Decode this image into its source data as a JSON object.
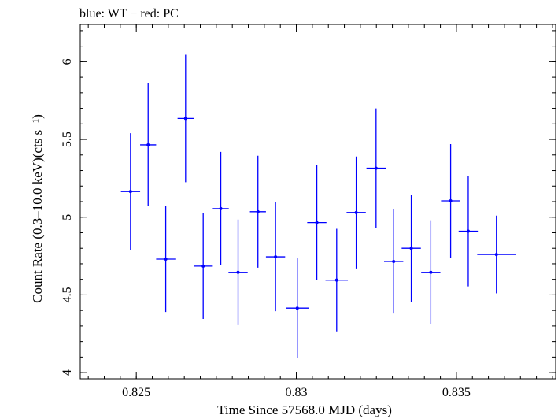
{
  "chart_data": {
    "type": "scatter",
    "title": "blue: WT − red: PC",
    "xlabel": "Time Since 57568.0 MJD (days)",
    "ylabel": "Count Rate (0.3–10.0 keV)(cts s⁻¹)",
    "xlim": [
      0.82325,
      0.8381
    ],
    "ylim": [
      3.96,
      6.24
    ],
    "x_ticks": [
      0.825,
      0.83,
      0.835
    ],
    "x_tick_labels": [
      "0.825",
      "0.83",
      "0.835"
    ],
    "y_ticks": [
      4,
      4.5,
      5,
      5.5,
      6
    ],
    "y_tick_labels": [
      "4",
      "4.5",
      "5",
      "5.5",
      "6"
    ],
    "grid": false,
    "series": [
      {
        "color": "#0000ff",
        "points": [
          {
            "x": 0.82482,
            "xerr": 0.0003,
            "y": 5.165,
            "yerr": 0.375
          },
          {
            "x": 0.82537,
            "xerr": 0.00025,
            "y": 5.465,
            "yerr": 0.395
          },
          {
            "x": 0.82592,
            "xerr": 0.0003,
            "y": 4.73,
            "yerr": 0.34
          },
          {
            "x": 0.82654,
            "xerr": 0.00025,
            "y": 5.635,
            "yerr": 0.41
          },
          {
            "x": 0.82709,
            "xerr": 0.0003,
            "y": 4.685,
            "yerr": 0.34
          },
          {
            "x": 0.82764,
            "xerr": 0.00025,
            "y": 5.055,
            "yerr": 0.365
          },
          {
            "x": 0.82818,
            "xerr": 0.0003,
            "y": 4.645,
            "yerr": 0.34
          },
          {
            "x": 0.8288,
            "xerr": 0.00025,
            "y": 5.035,
            "yerr": 0.36
          },
          {
            "x": 0.82935,
            "xerr": 0.0003,
            "y": 4.745,
            "yerr": 0.35
          },
          {
            "x": 0.83003,
            "xerr": 0.00035,
            "y": 4.415,
            "yerr": 0.32
          },
          {
            "x": 0.83064,
            "xerr": 0.0003,
            "y": 4.965,
            "yerr": 0.37
          },
          {
            "x": 0.83126,
            "xerr": 0.00035,
            "y": 4.595,
            "yerr": 0.33
          },
          {
            "x": 0.83187,
            "xerr": 0.0003,
            "y": 5.03,
            "yerr": 0.36
          },
          {
            "x": 0.83249,
            "xerr": 0.0003,
            "y": 5.315,
            "yerr": 0.385
          },
          {
            "x": 0.83304,
            "xerr": 0.0003,
            "y": 4.715,
            "yerr": 0.335
          },
          {
            "x": 0.83359,
            "xerr": 0.0003,
            "y": 4.8,
            "yerr": 0.345
          },
          {
            "x": 0.8342,
            "xerr": 0.0003,
            "y": 4.645,
            "yerr": 0.335
          },
          {
            "x": 0.83482,
            "xerr": 0.0003,
            "y": 5.105,
            "yerr": 0.365
          },
          {
            "x": 0.83537,
            "xerr": 0.0003,
            "y": 4.91,
            "yerr": 0.355
          },
          {
            "x": 0.83625,
            "xerr": 0.0006,
            "y": 4.76,
            "yerr": 0.25
          }
        ]
      }
    ]
  }
}
